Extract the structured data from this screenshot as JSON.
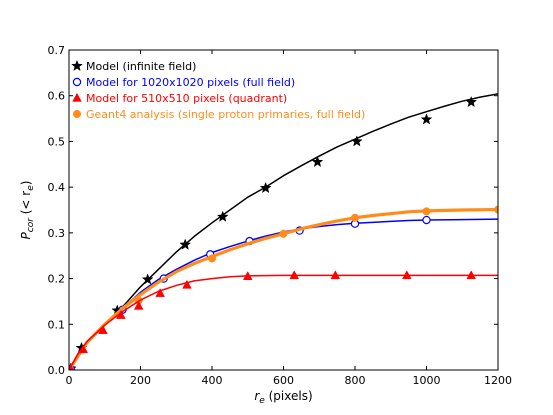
{
  "chart_data": {
    "type": "line",
    "xlabel_main": "r",
    "xlabel_sub": "e",
    "xlabel_unit": " (pixels)",
    "ylabel_main": "P",
    "ylabel_sub": "cor",
    "ylabel_open": " (< r",
    "ylabel_sub2": "e",
    "ylabel_close": ")",
    "xlim": [
      0,
      1200
    ],
    "ylim": [
      0,
      0.7
    ],
    "xticks": [
      0,
      200,
      400,
      600,
      800,
      1000,
      1200
    ],
    "xtick_labels": [
      "0",
      "200",
      "400",
      "600",
      "800",
      "1000",
      "1200"
    ],
    "yticks": [
      0,
      0.1,
      0.2,
      0.3,
      0.4,
      0.5,
      0.6,
      0.7
    ],
    "ytick_labels": [
      "0.0",
      "0.1",
      "0.2",
      "0.3",
      "0.4",
      "0.5",
      "0.6",
      "0.7"
    ],
    "legend_position": "top-left",
    "grid": false,
    "series": [
      {
        "name": "Model (infinite field)",
        "color": "#000000",
        "marker": "star",
        "curve": [
          [
            0,
            0
          ],
          [
            25,
            0.035
          ],
          [
            50,
            0.062
          ],
          [
            100,
            0.1
          ],
          [
            150,
            0.138
          ],
          [
            200,
            0.182
          ],
          [
            250,
            0.22
          ],
          [
            300,
            0.258
          ],
          [
            350,
            0.292
          ],
          [
            400,
            0.322
          ],
          [
            450,
            0.35
          ],
          [
            500,
            0.378
          ],
          [
            550,
            0.4
          ],
          [
            600,
            0.425
          ],
          [
            650,
            0.447
          ],
          [
            700,
            0.468
          ],
          [
            750,
            0.488
          ],
          [
            800,
            0.505
          ],
          [
            850,
            0.522
          ],
          [
            900,
            0.538
          ],
          [
            950,
            0.553
          ],
          [
            1000,
            0.565
          ],
          [
            1050,
            0.577
          ],
          [
            1100,
            0.588
          ],
          [
            1150,
            0.597
          ],
          [
            1200,
            0.604
          ]
        ],
        "markers": [
          [
            5,
            0.003
          ],
          [
            35,
            0.048
          ],
          [
            135,
            0.13
          ],
          [
            220,
            0.198
          ],
          [
            325,
            0.274
          ],
          [
            430,
            0.335
          ],
          [
            550,
            0.398
          ],
          [
            695,
            0.455
          ],
          [
            805,
            0.5
          ],
          [
            1000,
            0.548
          ],
          [
            1125,
            0.586
          ]
        ]
      },
      {
        "name": "Model for 1020x1020 pixels (full field)",
        "color": "#0000ff",
        "marker": "circle-open",
        "curve": [
          [
            0,
            0
          ],
          [
            25,
            0.035
          ],
          [
            50,
            0.062
          ],
          [
            100,
            0.1
          ],
          [
            150,
            0.135
          ],
          [
            200,
            0.17
          ],
          [
            250,
            0.198
          ],
          [
            300,
            0.22
          ],
          [
            350,
            0.24
          ],
          [
            400,
            0.257
          ],
          [
            450,
            0.27
          ],
          [
            500,
            0.282
          ],
          [
            550,
            0.293
          ],
          [
            600,
            0.302
          ],
          [
            650,
            0.309
          ],
          [
            700,
            0.314
          ],
          [
            750,
            0.318
          ],
          [
            800,
            0.321
          ],
          [
            850,
            0.323
          ],
          [
            900,
            0.325
          ],
          [
            950,
            0.327
          ],
          [
            1000,
            0.328
          ],
          [
            1100,
            0.329
          ],
          [
            1200,
            0.33
          ]
        ],
        "markers": [
          [
            5,
            0.002
          ],
          [
            150,
            0.132
          ],
          [
            265,
            0.2
          ],
          [
            395,
            0.253
          ],
          [
            505,
            0.282
          ],
          [
            645,
            0.305
          ],
          [
            800,
            0.32
          ],
          [
            1000,
            0.328
          ]
        ]
      },
      {
        "name": "Model for 510x510 pixels (quadrant)",
        "color": "#ff0000",
        "marker": "triangle",
        "curve": [
          [
            0,
            0
          ],
          [
            25,
            0.035
          ],
          [
            50,
            0.062
          ],
          [
            100,
            0.098
          ],
          [
            150,
            0.128
          ],
          [
            200,
            0.153
          ],
          [
            250,
            0.172
          ],
          [
            300,
            0.185
          ],
          [
            350,
            0.195
          ],
          [
            400,
            0.2
          ],
          [
            450,
            0.204
          ],
          [
            500,
            0.206
          ],
          [
            600,
            0.207
          ],
          [
            1200,
            0.207
          ]
        ],
        "markers": [
          [
            5,
            0.002
          ],
          [
            40,
            0.045
          ],
          [
            95,
            0.087
          ],
          [
            145,
            0.12
          ],
          [
            195,
            0.14
          ],
          [
            255,
            0.168
          ],
          [
            330,
            0.186
          ],
          [
            500,
            0.205
          ],
          [
            630,
            0.207
          ],
          [
            745,
            0.207
          ],
          [
            945,
            0.207
          ],
          [
            1125,
            0.207
          ]
        ]
      },
      {
        "name": "Geant4 analysis (single proton primaries, full field)",
        "color": "#ff8c1a",
        "marker": "circle-filled",
        "curve": [
          [
            0,
            0
          ],
          [
            50,
            0.06
          ],
          [
            100,
            0.1
          ],
          [
            150,
            0.135
          ],
          [
            200,
            0.165
          ],
          [
            250,
            0.192
          ],
          [
            300,
            0.215
          ],
          [
            350,
            0.233
          ],
          [
            400,
            0.248
          ],
          [
            450,
            0.263
          ],
          [
            500,
            0.276
          ],
          [
            550,
            0.288
          ],
          [
            600,
            0.298
          ],
          [
            650,
            0.309
          ],
          [
            700,
            0.318
          ],
          [
            750,
            0.326
          ],
          [
            800,
            0.333
          ],
          [
            850,
            0.338
          ],
          [
            900,
            0.342
          ],
          [
            950,
            0.346
          ],
          [
            1000,
            0.348
          ],
          [
            1100,
            0.35
          ],
          [
            1200,
            0.351
          ]
        ],
        "markers": [
          [
            195,
            0.152
          ],
          [
            400,
            0.244
          ],
          [
            600,
            0.298
          ],
          [
            800,
            0.333
          ],
          [
            1000,
            0.347
          ],
          [
            1200,
            0.351
          ]
        ]
      }
    ]
  }
}
